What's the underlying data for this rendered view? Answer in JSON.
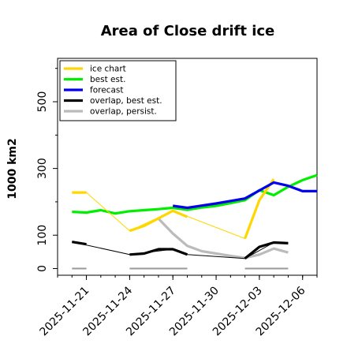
{
  "chart_data": {
    "type": "line",
    "title": "Area of Close drift ice",
    "ylabel": "1000 km2",
    "xlabel": "",
    "xlim": [
      "2025-11-19",
      "2025-12-07"
    ],
    "ylim": [
      -20,
      630
    ],
    "yticks": [
      0,
      100,
      300,
      500
    ],
    "xticks": [
      {
        "date": "2025-11-21",
        "label": "2025-11-21",
        "color": "#000000"
      },
      {
        "date": "2025-11-24",
        "label": "2025-11-24",
        "color": "#000000"
      },
      {
        "date": "2025-11-27",
        "label": "2025-11-27",
        "color": "#008000"
      },
      {
        "date": "2025-11-30",
        "label": "2025-11-30",
        "color": "#000000"
      },
      {
        "date": "2025-12-03",
        "label": "2025-12-03",
        "color": "#000000"
      },
      {
        "date": "2025-12-06",
        "label": "2025-12-06",
        "color": "#000000"
      }
    ],
    "legend_position": "top-left",
    "grid": false,
    "series": [
      {
        "name": "ice chart",
        "color": "#FFD700",
        "width": 3.2,
        "layer": 2,
        "points": [
          [
            "2025-11-20",
            228
          ],
          [
            "2025-11-21",
            228
          ]
        ]
      },
      {
        "name": "ice chart",
        "color": "#FFD700",
        "width": 1,
        "layer": 2,
        "legend": false,
        "points": [
          [
            "2025-11-21",
            228
          ],
          [
            "2025-11-24",
            113
          ],
          [
            "2025-11-27",
            173
          ],
          [
            "2025-12-02",
            90
          ],
          [
            "2025-12-03",
            205
          ]
        ]
      },
      {
        "name": "ice chart",
        "color": "#FFD700",
        "width": 3.2,
        "layer": 2,
        "legend": false,
        "points": [
          [
            "2025-11-24",
            113
          ],
          [
            "2025-11-25",
            128
          ],
          [
            "2025-11-27",
            173
          ],
          [
            "2025-11-28",
            155
          ]
        ]
      },
      {
        "name": "ice chart",
        "color": "#FFD700",
        "width": 3.2,
        "layer": 2,
        "legend": false,
        "points": [
          [
            "2025-12-02",
            90
          ],
          [
            "2025-12-03",
            205
          ],
          [
            "2025-12-04",
            268
          ]
        ]
      },
      {
        "name": "best est.",
        "color": "#00EE00",
        "width": 3.2,
        "layer": 1,
        "points": [
          [
            "2025-11-20",
            170
          ],
          [
            "2025-11-21",
            168
          ],
          [
            "2025-11-22",
            175
          ],
          [
            "2025-11-23",
            165
          ],
          [
            "2025-11-24",
            172
          ],
          [
            "2025-11-25",
            175
          ],
          [
            "2025-11-26",
            178
          ],
          [
            "2025-11-27",
            182
          ],
          [
            "2025-11-28",
            176
          ],
          [
            "2025-11-29",
            183
          ],
          [
            "2025-11-30",
            188
          ],
          [
            "2025-12-01",
            196
          ],
          [
            "2025-12-02",
            205
          ],
          [
            "2025-12-03",
            235
          ],
          [
            "2025-12-04",
            220
          ],
          [
            "2025-12-05",
            245
          ],
          [
            "2025-12-06",
            265
          ],
          [
            "2025-12-07",
            280
          ]
        ]
      },
      {
        "name": "forecast",
        "color": "#0000EE",
        "width": 3.2,
        "layer": 3,
        "points": [
          [
            "2025-11-27",
            188
          ],
          [
            "2025-11-28",
            182
          ],
          [
            "2025-11-30",
            195
          ],
          [
            "2025-12-02",
            210
          ],
          [
            "2025-12-04",
            258
          ],
          [
            "2025-12-05",
            248
          ],
          [
            "2025-12-06",
            232
          ],
          [
            "2025-12-07",
            232
          ]
        ]
      },
      {
        "name": "overlap, best est.",
        "color": "#000000",
        "width": 1,
        "layer": 4,
        "legend": false,
        "points": [
          [
            "2025-11-20",
            80
          ],
          [
            "2025-11-24",
            42
          ],
          [
            "2025-11-27",
            58
          ],
          [
            "2025-11-28",
            42
          ],
          [
            "2025-12-02",
            30
          ],
          [
            "2025-12-04",
            78
          ],
          [
            "2025-12-05",
            76
          ]
        ]
      },
      {
        "name": "overlap, best est.",
        "color": "#000000",
        "width": 3.2,
        "layer": 4,
        "points": [
          [
            "2025-11-20",
            80
          ],
          [
            "2025-11-21",
            73
          ]
        ]
      },
      {
        "name": "overlap, best est.",
        "color": "#000000",
        "width": 3.2,
        "layer": 4,
        "legend": false,
        "points": [
          [
            "2025-11-24",
            42
          ],
          [
            "2025-11-25",
            45
          ],
          [
            "2025-11-26",
            58
          ],
          [
            "2025-11-27",
            58
          ],
          [
            "2025-11-28",
            42
          ]
        ]
      },
      {
        "name": "overlap, best est.",
        "color": "#000000",
        "width": 3.2,
        "layer": 4,
        "legend": false,
        "points": [
          [
            "2025-12-02",
            30
          ],
          [
            "2025-12-03",
            65
          ],
          [
            "2025-12-04",
            78
          ],
          [
            "2025-12-05",
            76
          ]
        ]
      },
      {
        "name": "overlap, persist.",
        "color": "#BBBBBB",
        "width": 3.2,
        "layer": 0,
        "points": [
          [
            "2025-11-26",
            150
          ],
          [
            "2025-11-27",
            105
          ],
          [
            "2025-11-28",
            68
          ],
          [
            "2025-11-29",
            52
          ],
          [
            "2025-12-01",
            38
          ],
          [
            "2025-12-02",
            32
          ],
          [
            "2025-12-03",
            42
          ],
          [
            "2025-12-04",
            60
          ],
          [
            "2025-12-05",
            48
          ]
        ]
      },
      {
        "name": "overlap, persist.",
        "color": "#999999",
        "width": 2,
        "layer": 0,
        "legend": false,
        "points": [
          [
            "2025-11-20",
            0
          ],
          [
            "2025-11-21",
            0
          ]
        ]
      },
      {
        "name": "overlap, persist.",
        "color": "#999999",
        "width": 2,
        "layer": 0,
        "legend": false,
        "points": [
          [
            "2025-11-24",
            0
          ],
          [
            "2025-11-28",
            0
          ]
        ]
      },
      {
        "name": "overlap, persist.",
        "color": "#999999",
        "width": 2,
        "layer": 0,
        "legend": false,
        "points": [
          [
            "2025-12-02",
            0
          ],
          [
            "2025-12-05",
            0
          ]
        ]
      }
    ]
  }
}
